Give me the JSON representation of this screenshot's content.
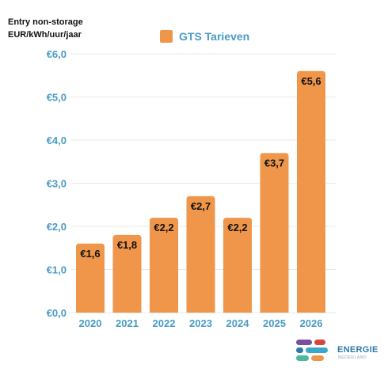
{
  "unit_label_line1": "Entry non-storage",
  "unit_label_line2": "EUR/kWh/uur/jaar",
  "legend_label": "GTS Tarieven",
  "logo": {
    "word": "ENERGIE",
    "sub": "NEDERLAND"
  },
  "colors": {
    "bar": "#F0964A",
    "axis_text": "#4A9BC4",
    "grid": "#E9E9E9"
  },
  "chart_data": {
    "type": "bar",
    "categories": [
      "2020",
      "2021",
      "2022",
      "2023",
      "2024",
      "2025",
      "2026"
    ],
    "values": [
      1.6,
      1.8,
      2.2,
      2.7,
      2.2,
      3.7,
      5.6
    ],
    "data_labels": [
      "€1,6",
      "€1,8",
      "€2,2",
      "€2,7",
      "€2,2",
      "€3,7",
      "€5,6"
    ],
    "ylim": [
      0,
      6
    ],
    "yticks": [
      0,
      1,
      2,
      3,
      4,
      5,
      6
    ],
    "ytick_labels": [
      "€0,0",
      "€1,0",
      "€2,0",
      "€3,0",
      "€4,0",
      "€5,0",
      "€6,0"
    ],
    "series": [
      {
        "name": "GTS Tarieven",
        "values": [
          1.6,
          1.8,
          2.2,
          2.7,
          2.2,
          3.7,
          5.6
        ]
      }
    ],
    "ylabel": "Entry non-storage EUR/kWh/uur/jaar",
    "grid": true,
    "legend_position": "top-center"
  }
}
